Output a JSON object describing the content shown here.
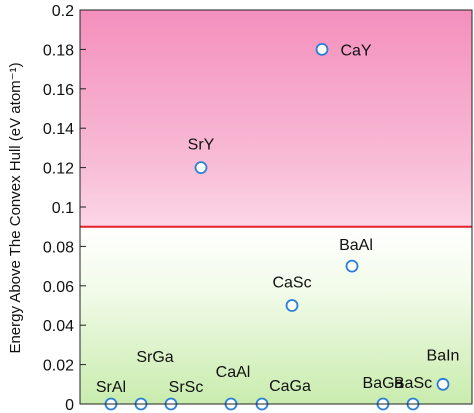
{
  "chart_data": {
    "type": "scatter",
    "title": "",
    "xlabel": "",
    "ylabel": "Energy Above The Convex Hull (eV atom⁻¹)",
    "ylim": [
      0,
      0.2
    ],
    "yticks": [
      "0",
      "0.02",
      "0.04",
      "0.06",
      "0.08",
      "0.1",
      "0.12",
      "0.14",
      "0.16",
      "0.18",
      "0.2"
    ],
    "threshold": 0.09,
    "grid": false,
    "points": [
      {
        "label": "SrAl",
        "x": 1,
        "y": 0
      },
      {
        "label": "SrGa",
        "x": 2,
        "y": 0
      },
      {
        "label": "SrSc",
        "x": 3,
        "y": 0
      },
      {
        "label": "SrY",
        "x": 3,
        "y": 0.12
      },
      {
        "label": "CaAl",
        "x": 4,
        "y": 0
      },
      {
        "label": "CaGa",
        "x": 5,
        "y": 0
      },
      {
        "label": "CaSc",
        "x": 6,
        "y": 0.05
      },
      {
        "label": "CaY",
        "x": 7,
        "y": 0.18
      },
      {
        "label": "BaAl",
        "x": 8,
        "y": 0.07
      },
      {
        "label": "BaGa",
        "x": 9,
        "y": 0
      },
      {
        "label": "BaSc",
        "x": 10,
        "y": 0
      },
      {
        "label": "BaIn",
        "x": 11,
        "y": 0.01
      }
    ]
  },
  "colors": {
    "unstable_region": "#f7a8cc",
    "stable_region": "#d8f2c4",
    "threshold_line": "#e8202a",
    "marker_stroke": "#2b7fd6",
    "marker_fill": "#ffffff"
  }
}
